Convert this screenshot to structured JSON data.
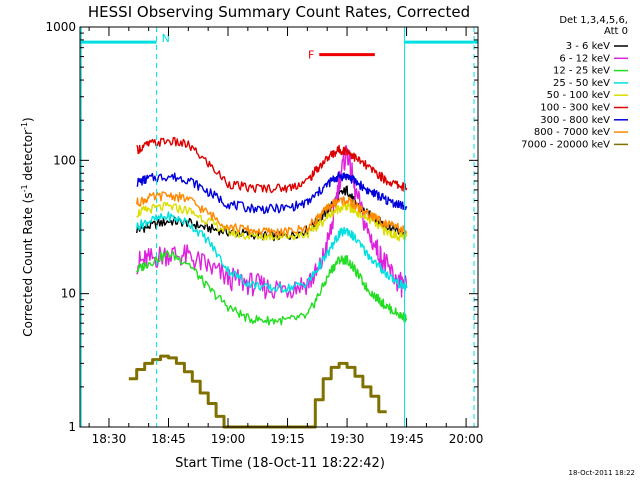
{
  "chart_data": {
    "type": "line",
    "title": "HESSI Observing Summary Count Rates, Corrected",
    "xlabel": "Start Time (18-Oct-11 18:22:42)",
    "ylabel_main": "Corrected Count Rate (s",
    "ylabel_sup1": "-1",
    "ylabel_mid": " detector",
    "ylabel_sup2": "-1",
    "ylabel_end": ")",
    "x_unit": "minutes after 18:00 UT",
    "xlim": [
      22.7,
      123
    ],
    "ylim": [
      1,
      1000
    ],
    "y_scale": "log",
    "x_ticks": [
      {
        "value": 30,
        "label": "18:30"
      },
      {
        "value": 45,
        "label": "18:45"
      },
      {
        "value": 60,
        "label": "19:00"
      },
      {
        "value": 75,
        "label": "19:15"
      },
      {
        "value": 90,
        "label": "19:30"
      },
      {
        "value": 105,
        "label": "19:45"
      },
      {
        "value": 120,
        "label": "20:00"
      }
    ],
    "y_ticks": [
      {
        "value": 1,
        "label": "1"
      },
      {
        "value": 10,
        "label": "10"
      },
      {
        "value": 100,
        "label": "100"
      },
      {
        "value": 1000,
        "label": "1000"
      }
    ],
    "legend_header": [
      "Det 1,3,4,5,6,",
      "Att 0"
    ],
    "legend_position": "right-outside",
    "series": [
      {
        "name": "3 - 6 keV",
        "color": "#000000",
        "x": [
          37,
          40,
          45,
          50,
          55,
          60,
          65,
          70,
          75,
          80,
          83,
          86,
          88,
          90,
          92,
          95,
          98,
          100,
          103,
          105
        ],
        "y": [
          30,
          32,
          35,
          34,
          31,
          29,
          28,
          27,
          27,
          30,
          36,
          45,
          55,
          60,
          48,
          40,
          35,
          32,
          29,
          27
        ]
      },
      {
        "name": "6 - 12 keV",
        "color": "#dd22dd",
        "x": [
          37,
          40,
          45,
          50,
          55,
          60,
          65,
          70,
          75,
          80,
          83,
          86,
          88,
          90,
          92,
          95,
          98,
          100,
          103,
          105
        ],
        "y": [
          17,
          18,
          20,
          19,
          16,
          13,
          12,
          11,
          11,
          12,
          15,
          30,
          70,
          120,
          60,
          30,
          20,
          16,
          12,
          11
        ]
      },
      {
        "name": "12 - 25 keV",
        "color": "#22dd22",
        "x": [
          37,
          40,
          45,
          50,
          55,
          60,
          65,
          70,
          75,
          80,
          83,
          86,
          88,
          90,
          92,
          95,
          98,
          100,
          103,
          105
        ],
        "y": [
          15,
          17,
          20,
          17,
          11,
          8,
          6.5,
          6.3,
          6.3,
          6.8,
          10,
          15,
          18,
          18,
          15,
          11,
          9,
          8,
          7,
          6.5
        ]
      },
      {
        "name": "25 - 50 keV",
        "color": "#00e0e0",
        "x": [
          37,
          40,
          45,
          50,
          55,
          60,
          65,
          70,
          75,
          80,
          83,
          86,
          88,
          90,
          92,
          95,
          98,
          100,
          103,
          105
        ],
        "y": [
          32,
          35,
          38,
          34,
          25,
          15,
          12,
          11,
          11,
          12,
          16,
          22,
          28,
          30,
          26,
          20,
          16,
          14,
          12,
          11
        ]
      },
      {
        "name": "50 - 100 keV",
        "color": "#dddd00",
        "x": [
          37,
          40,
          45,
          50,
          55,
          60,
          65,
          70,
          75,
          80,
          83,
          86,
          88,
          90,
          92,
          95,
          98,
          100,
          103,
          105
        ],
        "y": [
          40,
          43,
          45,
          42,
          35,
          29,
          27,
          27,
          27,
          28,
          33,
          40,
          44,
          45,
          42,
          37,
          32,
          29,
          27,
          27
        ]
      },
      {
        "name": "100 - 300 keV",
        "color": "#dd0000",
        "x": [
          37,
          40,
          45,
          50,
          55,
          60,
          65,
          70,
          75,
          80,
          83,
          86,
          88,
          90,
          92,
          95,
          98,
          100,
          103,
          105
        ],
        "y": [
          120,
          132,
          140,
          130,
          95,
          67,
          62,
          62,
          62,
          70,
          90,
          110,
          120,
          118,
          105,
          90,
          78,
          70,
          65,
          62
        ]
      },
      {
        "name": "300 - 800 keV",
        "color": "#0000dd",
        "x": [
          37,
          40,
          45,
          50,
          55,
          60,
          65,
          70,
          75,
          80,
          83,
          86,
          88,
          90,
          92,
          95,
          98,
          100,
          103,
          105
        ],
        "y": [
          68,
          73,
          76,
          72,
          58,
          47,
          44,
          43,
          44,
          48,
          58,
          70,
          76,
          76,
          70,
          60,
          54,
          50,
          47,
          44
        ]
      },
      {
        "name": "800 - 7000 keV",
        "color": "#ff8800",
        "x": [
          37,
          40,
          45,
          50,
          55,
          60,
          65,
          70,
          75,
          80,
          83,
          86,
          88,
          90,
          92,
          95,
          98,
          100,
          103,
          105
        ],
        "y": [
          48,
          52,
          55,
          51,
          40,
          32,
          30,
          29,
          29,
          31,
          38,
          46,
          50,
          50,
          46,
          40,
          36,
          33,
          31,
          29
        ]
      },
      {
        "name": "7000 - 20000 keV",
        "color": "#807000",
        "x": [
          35,
          37,
          39,
          41,
          43,
          45,
          47,
          49,
          51,
          53,
          55,
          57,
          59,
          80,
          82,
          84,
          86,
          88,
          90,
          92,
          94,
          96,
          98,
          100
        ],
        "y": [
          2.3,
          2.7,
          3.0,
          3.2,
          3.4,
          3.3,
          3.0,
          2.6,
          2.2,
          1.8,
          1.5,
          1.2,
          1.0,
          1.0,
          1.6,
          2.3,
          2.8,
          3.0,
          2.8,
          2.4,
          2.0,
          1.7,
          1.3,
          1.0
        ]
      }
    ],
    "intervals": [
      {
        "label": "",
        "color": "#00e0e0",
        "x_start": 22.7,
        "x_end": 42,
        "y": 770
      },
      {
        "label": "N",
        "color": "#00e0e0",
        "x": 42
      },
      {
        "label": "",
        "color": "#00e0e0",
        "x_start": 104.5,
        "x_end": 123,
        "y": 770
      },
      {
        "label": "F",
        "color": "#ee0000",
        "x_start": 83,
        "x_end": 97,
        "y": 620
      }
    ],
    "vertical_lines": [
      {
        "x": 23.0,
        "color": "#00e0e0",
        "style": "solid"
      },
      {
        "x": 104.5,
        "color": "#00e0e0",
        "style": "solid"
      },
      {
        "x": 42.0,
        "color": "#00e0e0",
        "style": "dashed"
      },
      {
        "x": 122.0,
        "color": "#00e0e0",
        "style": "dashed"
      }
    ],
    "grid": false
  },
  "footer_timestamp": "18-Oct-2011 18:22"
}
